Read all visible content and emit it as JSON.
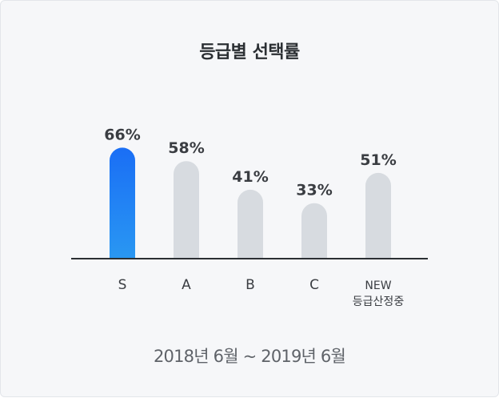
{
  "chart_data": {
    "type": "bar",
    "title": "등급별 선택률",
    "categories": [
      "S",
      "A",
      "B",
      "C",
      "NEW\n등급산정중"
    ],
    "values": [
      66,
      58,
      41,
      33,
      51
    ],
    "value_labels": [
      "66%",
      "58%",
      "41%",
      "33%",
      "51%"
    ],
    "ylim": [
      0,
      100
    ],
    "highlight_index": 0,
    "xlabel": "",
    "ylabel": "",
    "grid": false,
    "period": "2018년 6월 ~ 2019년 6월"
  },
  "colors": {
    "highlight_top": "#1a6ef5",
    "highlight_bottom": "#2b9cf2",
    "bar": "#d7dbe0",
    "axis": "#2b2f33"
  }
}
